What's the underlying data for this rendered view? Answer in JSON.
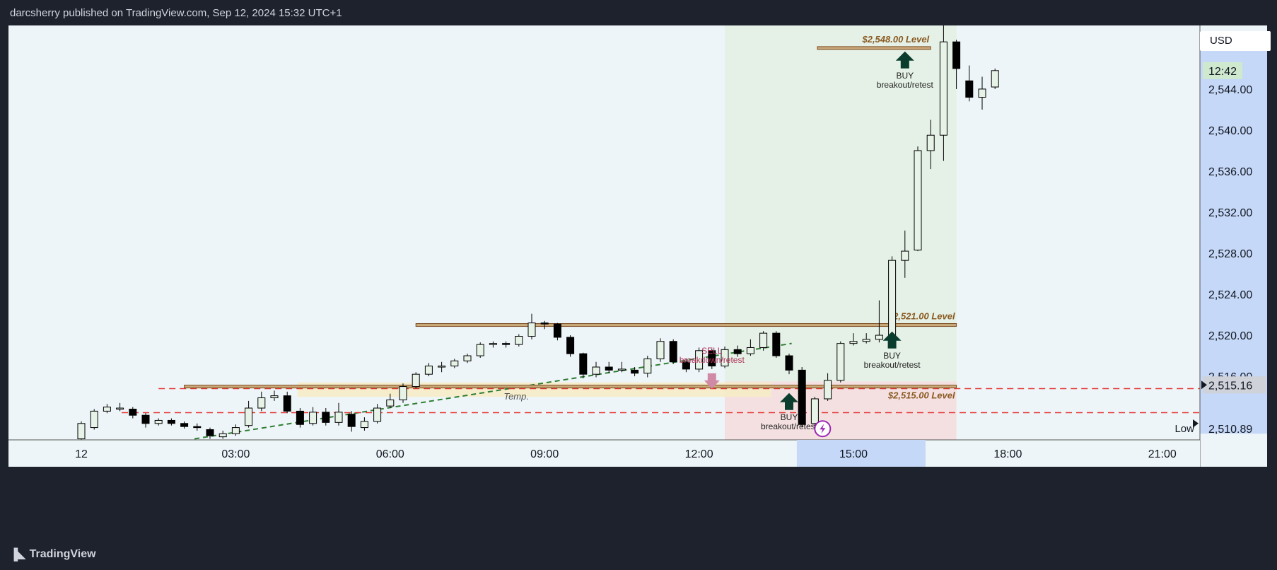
{
  "header": {
    "publisher_line": "darcsherry published on TradingView.com, Sep 12, 2024 15:32 UTC+1"
  },
  "footer": {
    "brand": "TradingView",
    "logo_icon": "tradingview-logo-icon"
  },
  "currency_label": "USD",
  "colors": {
    "up_fill": "#e8f3e8",
    "down_fill": "#000000",
    "level_line": "#7a4a1e",
    "support_dash": "#e53935",
    "trend_dash": "#2e7d32",
    "buy_arrow": "#0b3d2e",
    "sell_arrow": "#d08aa6",
    "long_zone": "#e3f1e3",
    "loss_zone": "#f4dede",
    "price_axis_bg": "#c5d8f7"
  },
  "chart_data": {
    "type": "candlestick",
    "x_ticks": [
      {
        "label": "12",
        "hour": 0
      },
      {
        "label": "03:00",
        "hour": 3
      },
      {
        "label": "06:00",
        "hour": 6
      },
      {
        "label": "09:00",
        "hour": 9
      },
      {
        "label": "12:00",
        "hour": 12
      },
      {
        "label": "15:00",
        "hour": 15
      },
      {
        "label": "18:00",
        "hour": 18
      },
      {
        "label": "21:00",
        "hour": 21
      }
    ],
    "y_ticks": [
      "2,516.00",
      "2,520.00",
      "2,524.00",
      "2,528.00",
      "2,532.00",
      "2,536.00",
      "2,540.00",
      "2,544.00"
    ],
    "ylim": [
      2509.8,
      2550.2
    ],
    "candle_interval_minutes": 15,
    "candles": [
      [
        2509.9,
        2511.4,
        2509.7,
        2511.6
      ],
      [
        2511.0,
        2512.6,
        2510.8,
        2512.8
      ],
      [
        2512.6,
        2513.0,
        2512.4,
        2513.3
      ],
      [
        2512.9,
        2512.9,
        2512.6,
        2513.4
      ],
      [
        2512.8,
        2512.2,
        2511.9,
        2513.0
      ],
      [
        2512.2,
        2511.4,
        2511.0,
        2512.4
      ],
      [
        2511.4,
        2511.7,
        2511.2,
        2511.9
      ],
      [
        2511.7,
        2511.4,
        2511.2,
        2511.9
      ],
      [
        2511.4,
        2511.1,
        2510.9,
        2511.6
      ],
      [
        2511.1,
        2511.0,
        2510.7,
        2511.4
      ],
      [
        2510.8,
        2510.2,
        2509.9,
        2511.0
      ],
      [
        2510.1,
        2510.4,
        2509.9,
        2510.7
      ],
      [
        2510.4,
        2511.0,
        2510.2,
        2511.3
      ],
      [
        2511.2,
        2512.9,
        2511.0,
        2513.6
      ],
      [
        2512.9,
        2513.9,
        2512.6,
        2514.5
      ],
      [
        2513.9,
        2514.1,
        2513.6,
        2514.6
      ],
      [
        2514.1,
        2512.6,
        2512.4,
        2514.5
      ],
      [
        2512.6,
        2511.3,
        2511.0,
        2512.9
      ],
      [
        2511.4,
        2512.5,
        2511.2,
        2513.0
      ],
      [
        2512.5,
        2511.5,
        2511.2,
        2512.9
      ],
      [
        2511.5,
        2512.5,
        2511.2,
        2513.4
      ],
      [
        2512.3,
        2511.1,
        2510.6,
        2512.6
      ],
      [
        2511.0,
        2511.6,
        2510.7,
        2512.0
      ],
      [
        2511.6,
        2512.9,
        2511.4,
        2513.3
      ],
      [
        2513.1,
        2513.7,
        2512.9,
        2514.3
      ],
      [
        2513.7,
        2515.0,
        2513.4,
        2515.3
      ],
      [
        2515.0,
        2516.2,
        2514.8,
        2516.4
      ],
      [
        2516.2,
        2517.0,
        2516.0,
        2517.3
      ],
      [
        2517.0,
        2517.0,
        2516.4,
        2517.4
      ],
      [
        2517.0,
        2517.5,
        2516.8,
        2517.7
      ],
      [
        2517.5,
        2518.0,
        2517.3,
        2518.2
      ],
      [
        2518.0,
        2519.1,
        2517.8,
        2519.3
      ],
      [
        2519.1,
        2519.2,
        2518.8,
        2519.4
      ],
      [
        2519.2,
        2519.1,
        2518.8,
        2519.4
      ],
      [
        2519.1,
        2519.9,
        2518.9,
        2520.1
      ],
      [
        2519.9,
        2521.2,
        2519.6,
        2522.1
      ],
      [
        2521.2,
        2521.1,
        2520.6,
        2521.4
      ],
      [
        2521.1,
        2519.8,
        2519.5,
        2521.2
      ],
      [
        2519.8,
        2518.2,
        2517.9,
        2520.0
      ],
      [
        2518.2,
        2516.2,
        2515.8,
        2518.3
      ],
      [
        2516.2,
        2516.9,
        2515.9,
        2517.4
      ],
      [
        2516.9,
        2516.6,
        2516.3,
        2517.4
      ],
      [
        2516.6,
        2516.7,
        2516.4,
        2517.4
      ],
      [
        2516.6,
        2516.3,
        2516.0,
        2516.9
      ],
      [
        2516.3,
        2517.7,
        2515.9,
        2518.0
      ],
      [
        2517.7,
        2519.4,
        2517.4,
        2519.7
      ],
      [
        2519.4,
        2517.4,
        2517.2,
        2519.6
      ],
      [
        2517.4,
        2516.7,
        2516.4,
        2517.7
      ],
      [
        2516.7,
        2518.5,
        2516.4,
        2518.8
      ],
      [
        2518.5,
        2517.0,
        2516.7,
        2518.7
      ],
      [
        2517.0,
        2518.6,
        2516.8,
        2518.9
      ],
      [
        2518.6,
        2518.2,
        2517.9,
        2519.0
      ],
      [
        2518.2,
        2518.8,
        2518.0,
        2519.6
      ],
      [
        2518.8,
        2520.2,
        2518.5,
        2520.4
      ],
      [
        2520.2,
        2518.0,
        2517.8,
        2520.4
      ],
      [
        2518.0,
        2516.6,
        2516.2,
        2518.2
      ],
      [
        2516.6,
        2511.3,
        2511.0,
        2516.9
      ],
      [
        2511.4,
        2513.8,
        2511.0,
        2514.0
      ],
      [
        2513.8,
        2515.6,
        2513.6,
        2516.3
      ],
      [
        2515.6,
        2519.2,
        2515.4,
        2519.4
      ],
      [
        2519.2,
        2519.4,
        2519.0,
        2520.2
      ],
      [
        2519.4,
        2519.6,
        2519.2,
        2520.2
      ],
      [
        2519.6,
        2520.0,
        2519.3,
        2523.4
      ],
      [
        2520.0,
        2527.3,
        2519.4,
        2527.7
      ],
      [
        2527.3,
        2528.2,
        2525.6,
        2530.2
      ],
      [
        2528.3,
        2538.0,
        2528.2,
        2538.4
      ],
      [
        2538.0,
        2539.5,
        2536.2,
        2541.0
      ],
      [
        2539.5,
        2548.6,
        2537.0,
        2551.0
      ],
      [
        2548.6,
        2546.0,
        2544.0,
        2548.8
      ],
      [
        2544.8,
        2543.2,
        2542.8,
        2546.3
      ],
      [
        2543.2,
        2544.0,
        2542.0,
        2545.2
      ],
      [
        2544.2,
        2545.8,
        2544.0,
        2546.0
      ]
    ],
    "levels": [
      {
        "label": "$2,548.00 Level",
        "price": 2548.0
      },
      {
        "label": "$2,521.00 Level",
        "price": 2521.0
      },
      {
        "label": "$2,515.00 Level",
        "price": 2515.0
      }
    ],
    "dashed_support": [
      2514.8,
      2512.45
    ],
    "zone_label": "Temp.",
    "zone": [
      2514.0,
      2515.4
    ],
    "signals": [
      {
        "type": "BUY",
        "sub": "breakout/retest",
        "arrow_icon": "buy-arrow-icon",
        "hour": 16.0,
        "price": 2546.7
      },
      {
        "type": "BUY",
        "sub": "breakout/retest",
        "arrow_icon": "buy-arrow-icon",
        "hour": 15.75,
        "price": 2519.4
      },
      {
        "type": "SELL",
        "sub": "breakdown/retest",
        "arrow_icon": "sell-arrow-icon",
        "hour": 12.25,
        "price": 2515.6
      },
      {
        "type": "BUY",
        "sub": "breakout/retest",
        "arrow_icon": "buy-arrow-icon",
        "hour": 13.75,
        "price": 2513.4
      }
    ],
    "price_labels": [
      {
        "text": "12:42",
        "price": 2545.8,
        "kind": "countdown"
      },
      {
        "text": "2,515.16",
        "price": 2515.16,
        "kind": "current"
      },
      {
        "text": "2,510.89",
        "price": 2510.89,
        "kind": "low"
      }
    ],
    "low_label": "Low",
    "alert_icon": "lightning-alert-icon"
  }
}
